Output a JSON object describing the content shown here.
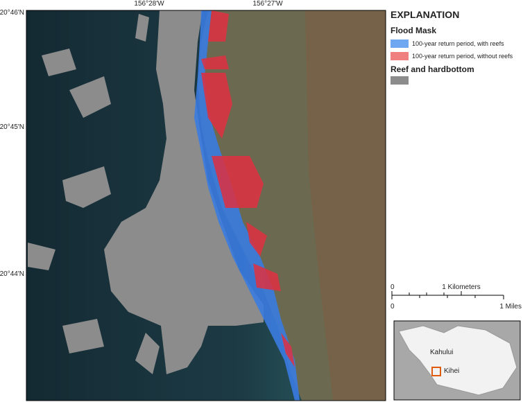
{
  "map": {
    "lon_labels": [
      "156°28'W",
      "156°27'W"
    ],
    "lat_labels": [
      "20°46'N",
      "20°45'N",
      "20°44'N"
    ]
  },
  "legend": {
    "title": "EXPLANATION",
    "flood_mask": {
      "heading": "Flood Mask",
      "items": [
        {
          "label": "100-year return period, with reefs",
          "color": "#6fa8f0"
        },
        {
          "label": "100-year return period, without reefs",
          "color": "#f08080"
        }
      ]
    },
    "reef": {
      "heading": "Reef and hardbottom",
      "color": "#8c8c8c"
    }
  },
  "scale_bar": {
    "km_labels": [
      "0",
      "1 Kilometers"
    ],
    "mile_labels": [
      "0",
      "1 Miles"
    ]
  },
  "inset": {
    "labels": [
      "Kahului",
      "Kihei"
    ]
  }
}
